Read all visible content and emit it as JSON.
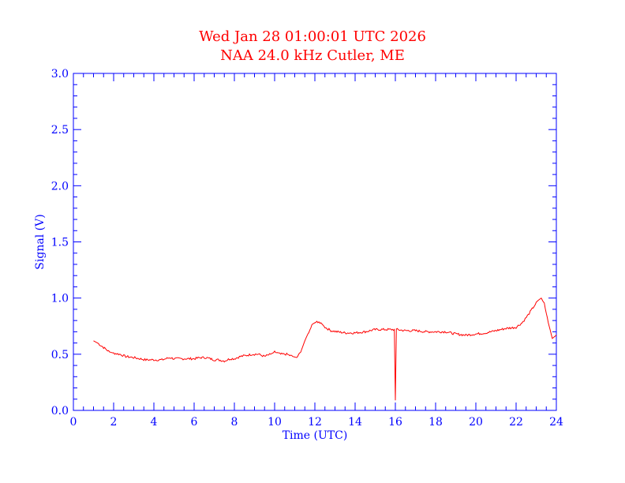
{
  "colors": {
    "title": "#ff0000",
    "axes": "#0000ff",
    "series": "#ff0000",
    "background": "#ffffff"
  },
  "chart_data": {
    "type": "line",
    "title": "Wed Jan 28 01:00:01 UTC 2026",
    "subtitle": "NAA 24.0 kHz Cutler, ME",
    "xlabel": "Time (UTC)",
    "ylabel": "Signal (V)",
    "xlim": [
      0,
      24
    ],
    "ylim": [
      0,
      3
    ],
    "xticks": [
      "0",
      "2",
      "4",
      "6",
      "8",
      "10",
      "12",
      "14",
      "16",
      "18",
      "20",
      "22",
      "24"
    ],
    "yticks": [
      "0.0",
      "0.5",
      "1.0",
      "1.5",
      "2.0",
      "2.5",
      "3.0"
    ],
    "grid": false,
    "series": [
      {
        "x": [
          1.0,
          1.2,
          1.5,
          1.8,
          2.0,
          2.3,
          2.6,
          3.0,
          3.3,
          3.6,
          4.0,
          4.4,
          4.8,
          5.0,
          5.3,
          5.6,
          6.0,
          6.3,
          6.6,
          7.0,
          7.2,
          7.5,
          7.8,
          8.0,
          8.3,
          8.6,
          8.9,
          9.2,
          9.5,
          9.8,
          10.0,
          10.3,
          10.6,
          10.9,
          11.1,
          11.3,
          11.5,
          11.7,
          11.9,
          12.1,
          12.3,
          12.5,
          12.8,
          13.1,
          13.5,
          14.0,
          14.5,
          15.0,
          15.5,
          15.95,
          16.0,
          16.05,
          16.5,
          17.0,
          17.5,
          18.0,
          18.5,
          19.0,
          19.5,
          20.0,
          20.5,
          21.0,
          21.5,
          22.0,
          22.3,
          22.6,
          22.9,
          23.1,
          23.25,
          23.4,
          23.6,
          23.8,
          24.0
        ],
        "y": [
          0.62,
          0.6,
          0.56,
          0.52,
          0.51,
          0.5,
          0.48,
          0.47,
          0.46,
          0.45,
          0.45,
          0.45,
          0.47,
          0.46,
          0.46,
          0.46,
          0.46,
          0.47,
          0.47,
          0.45,
          0.45,
          0.44,
          0.46,
          0.46,
          0.48,
          0.49,
          0.5,
          0.5,
          0.48,
          0.5,
          0.52,
          0.5,
          0.5,
          0.48,
          0.47,
          0.52,
          0.62,
          0.7,
          0.77,
          0.79,
          0.78,
          0.74,
          0.71,
          0.7,
          0.69,
          0.69,
          0.7,
          0.72,
          0.72,
          0.72,
          0.09,
          0.72,
          0.71,
          0.71,
          0.7,
          0.7,
          0.7,
          0.68,
          0.67,
          0.68,
          0.69,
          0.71,
          0.73,
          0.74,
          0.78,
          0.85,
          0.93,
          0.98,
          1.0,
          0.95,
          0.78,
          0.64,
          0.67
        ]
      }
    ]
  }
}
